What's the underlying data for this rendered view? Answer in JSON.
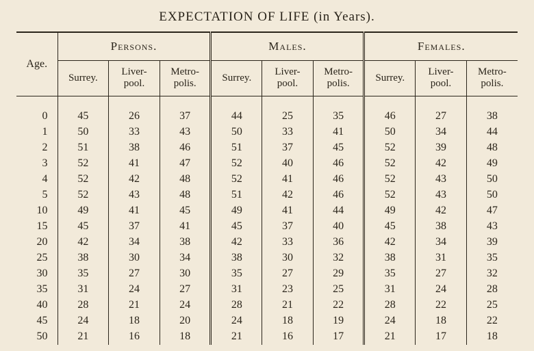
{
  "title": "EXPECTATION OF LIFE (in Years).",
  "age_header": "Age.",
  "groups": [
    "Persons.",
    "Males.",
    "Females."
  ],
  "subcolumns": [
    "Surrey.",
    "Liver-\npool.",
    "Metro-\npolis."
  ],
  "ages": [
    0,
    1,
    2,
    3,
    4,
    5,
    10,
    15,
    20,
    25,
    30,
    35,
    40,
    45,
    50
  ],
  "data": {
    "persons": {
      "surrey": [
        45,
        50,
        51,
        52,
        52,
        52,
        49,
        45,
        42,
        38,
        35,
        31,
        28,
        24,
        21
      ],
      "liverpool": [
        26,
        33,
        38,
        41,
        42,
        43,
        41,
        37,
        34,
        30,
        27,
        24,
        21,
        18,
        16
      ],
      "metropolis": [
        37,
        43,
        46,
        47,
        48,
        48,
        45,
        41,
        38,
        34,
        30,
        27,
        24,
        20,
        18
      ]
    },
    "males": {
      "surrey": [
        44,
        50,
        51,
        52,
        52,
        51,
        49,
        45,
        42,
        38,
        35,
        31,
        28,
        24,
        21
      ],
      "liverpool": [
        25,
        33,
        37,
        40,
        41,
        42,
        41,
        37,
        33,
        30,
        27,
        23,
        21,
        18,
        16
      ],
      "metropolis": [
        35,
        41,
        45,
        46,
        46,
        46,
        44,
        40,
        36,
        32,
        29,
        25,
        22,
        19,
        17
      ]
    },
    "females": {
      "surrey": [
        46,
        50,
        52,
        52,
        52,
        52,
        49,
        45,
        42,
        38,
        35,
        31,
        28,
        24,
        21
      ],
      "liverpool": [
        27,
        34,
        39,
        42,
        43,
        43,
        42,
        38,
        34,
        31,
        27,
        24,
        22,
        18,
        17
      ],
      "metropolis": [
        38,
        44,
        48,
        49,
        50,
        50,
        47,
        43,
        39,
        35,
        32,
        28,
        25,
        22,
        18
      ]
    }
  },
  "style": {
    "background_color": "#f2eada",
    "text_color": "#2a241a",
    "rule_color": "#2a241a",
    "font_family": "Times New Roman",
    "title_fontsize_pt": 14,
    "body_fontsize_pt": 12
  }
}
